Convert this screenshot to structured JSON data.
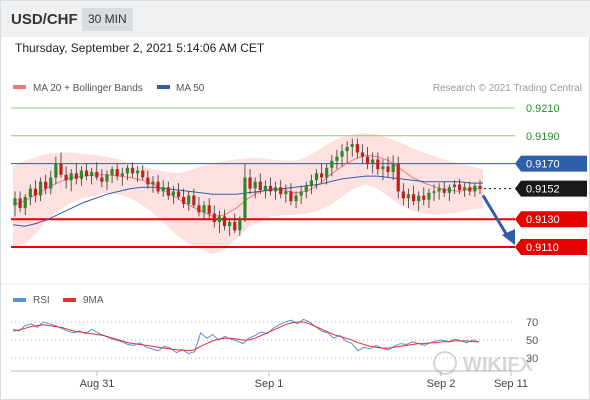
{
  "header": {
    "pair": "USD/CHF",
    "timeframe": "30 MIN"
  },
  "timestamp": "Thursday, September 2, 2021 5:14:06 AM CET",
  "legend": {
    "ma20": "MA 20 + Bollinger Bands",
    "ma50": "MA 50",
    "credit": "Research © 2021 Trading Central"
  },
  "rsi_legend": {
    "rsi": "RSI",
    "ma9": "9MA"
  },
  "watermark": "WIKIFX",
  "colors": {
    "up": "#2a8a2a",
    "down": "#c21f1f",
    "ma20": "#f07878",
    "ma50": "#2f5ea8",
    "band": "#fcd6d6",
    "support": "#e60000",
    "target": "#2f5ea8",
    "current": "#1a1a1a",
    "resistance": "#9ac870",
    "rsi": "#5b8fd6",
    "rsi_ma": "#e03030"
  },
  "chart_data": {
    "type": "candlestick",
    "x_tick_labels": [
      "Aug 31",
      "Sep 1",
      "Sep 2",
      "Sep 11"
    ],
    "price_levels": [
      {
        "label": "0.9210",
        "value": 0.921,
        "kind": "resistance"
      },
      {
        "label": "0.9190",
        "value": 0.919,
        "kind": "resistance"
      },
      {
        "label": "0.9170",
        "value": 0.917,
        "kind": "pivot"
      },
      {
        "label": "0.9152",
        "value": 0.9152,
        "kind": "current"
      },
      {
        "label": "0.9130",
        "value": 0.913,
        "kind": "support"
      },
      {
        "label": "0.9110",
        "value": 0.911,
        "kind": "support"
      }
    ],
    "forecast_arrow": {
      "from": 0.915,
      "to": 0.911
    },
    "rsi_ticks": [
      70,
      50,
      30
    ],
    "ohlc": [
      [
        0.914,
        0.915,
        0.9132,
        0.9145
      ],
      [
        0.9145,
        0.915,
        0.9135,
        0.9138
      ],
      [
        0.9138,
        0.9148,
        0.9133,
        0.9146
      ],
      [
        0.9146,
        0.9155,
        0.914,
        0.9152
      ],
      [
        0.9152,
        0.9158,
        0.9142,
        0.9147
      ],
      [
        0.9147,
        0.916,
        0.9143,
        0.9157
      ],
      [
        0.9157,
        0.9162,
        0.9148,
        0.9152
      ],
      [
        0.9152,
        0.9165,
        0.9148,
        0.916
      ],
      [
        0.916,
        0.9175,
        0.9155,
        0.917
      ],
      [
        0.917,
        0.9178,
        0.916,
        0.9162
      ],
      [
        0.9162,
        0.9168,
        0.9152,
        0.9158
      ],
      [
        0.9158,
        0.9166,
        0.915,
        0.9163
      ],
      [
        0.9163,
        0.917,
        0.9155,
        0.9159
      ],
      [
        0.9159,
        0.9168,
        0.9154,
        0.9165
      ],
      [
        0.9165,
        0.917,
        0.9158,
        0.9161
      ],
      [
        0.9161,
        0.9167,
        0.9155,
        0.9164
      ],
      [
        0.9164,
        0.9171,
        0.9158,
        0.916
      ],
      [
        0.916,
        0.9166,
        0.9153,
        0.9157
      ],
      [
        0.9157,
        0.9165,
        0.9151,
        0.9162
      ],
      [
        0.9162,
        0.9168,
        0.9156,
        0.9166
      ],
      [
        0.9166,
        0.917,
        0.9158,
        0.9161
      ],
      [
        0.9161,
        0.9167,
        0.9154,
        0.9163
      ],
      [
        0.9163,
        0.9169,
        0.9158,
        0.9167
      ],
      [
        0.9167,
        0.9171,
        0.916,
        0.9163
      ],
      [
        0.9163,
        0.9168,
        0.9157,
        0.9165
      ],
      [
        0.9165,
        0.9169,
        0.9158,
        0.916
      ],
      [
        0.916,
        0.9165,
        0.9152,
        0.9155
      ],
      [
        0.9155,
        0.9161,
        0.9149,
        0.9157
      ],
      [
        0.9157,
        0.9162,
        0.9148,
        0.915
      ],
      [
        0.915,
        0.9158,
        0.9146,
        0.9153
      ],
      [
        0.9153,
        0.9157,
        0.9144,
        0.9147
      ],
      [
        0.9147,
        0.9154,
        0.9141,
        0.915
      ],
      [
        0.915,
        0.9156,
        0.9144,
        0.9146
      ],
      [
        0.9146,
        0.9152,
        0.9138,
        0.9141
      ],
      [
        0.9141,
        0.915,
        0.9136,
        0.9147
      ],
      [
        0.9147,
        0.9152,
        0.9138,
        0.914
      ],
      [
        0.914,
        0.9146,
        0.9132,
        0.9135
      ],
      [
        0.9135,
        0.9143,
        0.913,
        0.914
      ],
      [
        0.914,
        0.9145,
        0.9131,
        0.9134
      ],
      [
        0.9134,
        0.914,
        0.9124,
        0.9128
      ],
      [
        0.9128,
        0.9136,
        0.912,
        0.9132
      ],
      [
        0.9132,
        0.9137,
        0.9122,
        0.9125
      ],
      [
        0.9125,
        0.9131,
        0.9118,
        0.9128
      ],
      [
        0.9128,
        0.9134,
        0.912,
        0.9122
      ],
      [
        0.9122,
        0.9132,
        0.9118,
        0.913
      ],
      [
        0.913,
        0.917,
        0.9128,
        0.916
      ],
      [
        0.916,
        0.9166,
        0.9148,
        0.9152
      ],
      [
        0.9152,
        0.916,
        0.9145,
        0.9157
      ],
      [
        0.9157,
        0.9163,
        0.9148,
        0.9151
      ],
      [
        0.9151,
        0.9158,
        0.9145,
        0.9154
      ],
      [
        0.9154,
        0.916,
        0.9147,
        0.915
      ],
      [
        0.915,
        0.9157,
        0.9144,
        0.9153
      ],
      [
        0.9153,
        0.9158,
        0.9145,
        0.9148
      ],
      [
        0.9148,
        0.9155,
        0.9142,
        0.915
      ],
      [
        0.915,
        0.9156,
        0.914,
        0.9143
      ],
      [
        0.9143,
        0.915,
        0.9138,
        0.9147
      ],
      [
        0.9147,
        0.9154,
        0.9141,
        0.915
      ],
      [
        0.915,
        0.9157,
        0.9145,
        0.9154
      ],
      [
        0.9154,
        0.9162,
        0.9148,
        0.9158
      ],
      [
        0.9158,
        0.9166,
        0.9152,
        0.9163
      ],
      [
        0.9163,
        0.917,
        0.9156,
        0.916
      ],
      [
        0.916,
        0.917,
        0.9155,
        0.9167
      ],
      [
        0.9167,
        0.9176,
        0.9161,
        0.9172
      ],
      [
        0.9172,
        0.918,
        0.9166,
        0.9175
      ],
      [
        0.9175,
        0.9184,
        0.9168,
        0.9179
      ],
      [
        0.9179,
        0.9186,
        0.917,
        0.9182
      ],
      [
        0.9182,
        0.9188,
        0.9175,
        0.9184
      ],
      [
        0.9184,
        0.9188,
        0.9174,
        0.9178
      ],
      [
        0.9178,
        0.9184,
        0.917,
        0.9175
      ],
      [
        0.9175,
        0.9182,
        0.9166,
        0.917
      ],
      [
        0.917,
        0.9178,
        0.9163,
        0.9173
      ],
      [
        0.9173,
        0.9178,
        0.9162,
        0.9166
      ],
      [
        0.9166,
        0.9173,
        0.9158,
        0.9168
      ],
      [
        0.9168,
        0.9175,
        0.916,
        0.9164
      ],
      [
        0.9164,
        0.9176,
        0.9158,
        0.917
      ],
      [
        0.917,
        0.9175,
        0.9145,
        0.915
      ],
      [
        0.915,
        0.9156,
        0.914,
        0.9145
      ],
      [
        0.9145,
        0.9152,
        0.9138,
        0.9148
      ],
      [
        0.9148,
        0.9154,
        0.914,
        0.9143
      ],
      [
        0.9143,
        0.915,
        0.9136,
        0.9147
      ],
      [
        0.9147,
        0.9153,
        0.914,
        0.9144
      ],
      [
        0.9144,
        0.9152,
        0.9138,
        0.9149
      ],
      [
        0.9149,
        0.9155,
        0.9143,
        0.915
      ],
      [
        0.915,
        0.9156,
        0.9144,
        0.9152
      ],
      [
        0.9152,
        0.9157,
        0.9146,
        0.9149
      ],
      [
        0.9149,
        0.9155,
        0.9143,
        0.9153
      ],
      [
        0.9153,
        0.9158,
        0.9148,
        0.9155
      ],
      [
        0.9155,
        0.9159,
        0.9148,
        0.9151
      ],
      [
        0.9151,
        0.9156,
        0.9146,
        0.9153
      ],
      [
        0.9153,
        0.9157,
        0.9147,
        0.915
      ],
      [
        0.915,
        0.9156,
        0.9146,
        0.9154
      ],
      [
        0.9154,
        0.9158,
        0.9148,
        0.9152
      ]
    ],
    "ma20": [
      0.914,
      0.9143,
      0.9148,
      0.9153,
      0.9157,
      0.916,
      0.9161,
      0.9162,
      0.9162,
      0.9161,
      0.916,
      0.9158,
      0.9155,
      0.915,
      0.9145,
      0.914,
      0.9136,
      0.9132,
      0.9133,
      0.9138,
      0.9145,
      0.915,
      0.9152,
      0.9151,
      0.9149,
      0.915,
      0.9155,
      0.9162,
      0.9168,
      0.9173,
      0.9176,
      0.9175,
      0.9172,
      0.9166,
      0.916,
      0.9156,
      0.9153,
      0.9151,
      0.915,
      0.9152,
      0.9152
    ],
    "ma50": [
      0.9126,
      0.9125,
      0.9127,
      0.913,
      0.9134,
      0.9138,
      0.9142,
      0.9145,
      0.9148,
      0.915,
      0.9152,
      0.9153,
      0.9153,
      0.9152,
      0.9151,
      0.915,
      0.9149,
      0.9148,
      0.9148,
      0.9148,
      0.9149,
      0.915,
      0.9151,
      0.9152,
      0.9153,
      0.9154,
      0.9155,
      0.9157,
      0.9159,
      0.916,
      0.9161,
      0.9161,
      0.916,
      0.9159,
      0.9158,
      0.9157,
      0.9157,
      0.9157,
      0.9157,
      0.9156,
      0.9156
    ],
    "bb_upper": [
      0.9168,
      0.9172,
      0.9175,
      0.9177,
      0.9178,
      0.9178,
      0.9177,
      0.9176,
      0.9175,
      0.9173,
      0.917,
      0.9168,
      0.9166,
      0.9164,
      0.9163,
      0.9165,
      0.9168,
      0.917,
      0.9172,
      0.9173,
      0.9174,
      0.9174,
      0.9173,
      0.9172,
      0.9172,
      0.9175,
      0.918,
      0.9185,
      0.9189,
      0.9191,
      0.9192,
      0.9191,
      0.9188,
      0.9185,
      0.9181,
      0.9178,
      0.9175,
      0.9172,
      0.917,
      0.9168,
      0.9166
    ],
    "bb_lower": [
      0.911,
      0.9112,
      0.912,
      0.913,
      0.9137,
      0.9142,
      0.9145,
      0.9147,
      0.9149,
      0.9148,
      0.9145,
      0.914,
      0.9134,
      0.9126,
      0.9118,
      0.9112,
      0.9108,
      0.9105,
      0.9108,
      0.9116,
      0.9124,
      0.9128,
      0.9132,
      0.9133,
      0.9133,
      0.9134,
      0.9136,
      0.914,
      0.9146,
      0.9152,
      0.9155,
      0.9152,
      0.9146,
      0.914,
      0.9136,
      0.9134,
      0.9133,
      0.9134,
      0.9135,
      0.9137,
      0.9138
    ],
    "rsi": [
      62,
      60,
      66,
      68,
      64,
      70,
      68,
      66,
      63,
      60,
      58,
      60,
      57,
      62,
      58,
      55,
      52,
      50,
      48,
      45,
      44,
      47,
      42,
      40,
      38,
      43,
      41,
      36,
      39,
      35,
      37,
      58,
      52,
      56,
      50,
      54,
      51,
      49,
      46,
      52,
      55,
      59,
      57,
      63,
      67,
      70,
      72,
      68,
      73,
      70,
      65,
      60,
      58,
      52,
      55,
      49,
      46,
      38,
      42,
      40,
      44,
      41,
      39,
      43,
      46,
      45,
      48,
      46,
      44,
      47,
      49,
      50,
      48,
      51,
      49,
      47,
      50,
      48
    ],
    "rsi_ma": [
      60,
      61,
      63,
      65,
      66,
      67,
      66,
      65,
      64,
      62,
      60,
      59,
      58,
      57,
      56,
      55,
      53,
      51,
      49,
      47,
      46,
      45,
      44,
      43,
      42,
      41,
      40,
      39,
      39,
      38,
      39,
      43,
      46,
      49,
      51,
      52,
      52,
      51,
      50,
      50,
      52,
      55,
      58,
      61,
      64,
      67,
      69,
      70,
      70,
      68,
      65,
      62,
      59,
      56,
      54,
      52,
      50,
      47,
      45,
      43,
      42,
      41,
      41,
      42,
      43,
      44,
      45,
      46,
      46,
      47,
      47,
      48,
      48,
      49,
      49,
      49,
      48,
      48
    ]
  }
}
